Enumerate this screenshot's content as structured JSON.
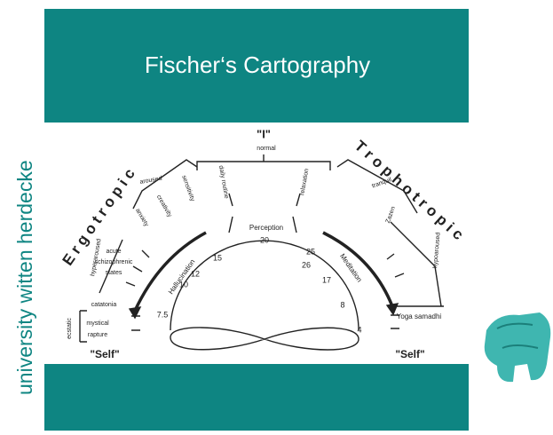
{
  "slide": {
    "title": "Fischer‘s Cartography",
    "side_text": "university witten herdecke"
  },
  "diagram": {
    "labels": [
      "\"I\"",
      "normal",
      "E r g o t r o p i c",
      "T r o p h o t r o p i c",
      "aroused",
      "creativity",
      "sensitivity",
      "anxiety",
      "daily routine",
      "relaxation",
      "tranquil",
      "Zazen",
      "hypoaroused",
      "hyperaroused",
      "acute",
      "schizophrenic",
      "states",
      "catatonia",
      "ecstatic",
      "mystical",
      "rapture",
      "Yoga samadhi",
      "Perception",
      "Hallucination",
      "Meditation",
      "\"Self\"",
      "\"Self\""
    ],
    "scale_labels": [
      "20",
      "15",
      "12",
      "10",
      "7.5",
      "25",
      "26",
      "17",
      "8",
      "4"
    ]
  }
}
